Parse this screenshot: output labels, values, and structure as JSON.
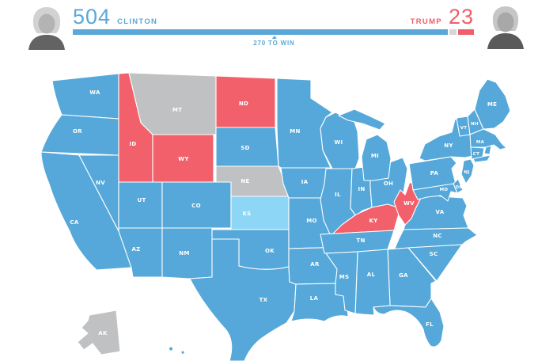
{
  "header": {
    "clinton": {
      "name": "CLINTON",
      "ev": 504
    },
    "trump": {
      "name": "TRUMP",
      "ev": 23
    },
    "tossup_ev": 11,
    "total_ev": 538,
    "threshold": 270,
    "threshold_label": "270 TO WIN"
  },
  "colors": {
    "dem": "#55a8d9",
    "rep": "#f2616b",
    "tossup": "#bfc1c3",
    "lean_dem": "#8dd6f6",
    "bar_tossup": "#d6d6d6",
    "text_blue": "#5ba8d8",
    "text_red": "#ee5f69"
  },
  "map": {
    "states": [
      {
        "abbr": "WA",
        "party": "dem"
      },
      {
        "abbr": "OR",
        "party": "dem"
      },
      {
        "abbr": "CA",
        "party": "dem"
      },
      {
        "abbr": "NV",
        "party": "dem"
      },
      {
        "abbr": "ID",
        "party": "rep"
      },
      {
        "abbr": "MT",
        "party": "tossup"
      },
      {
        "abbr": "WY",
        "party": "rep"
      },
      {
        "abbr": "UT",
        "party": "dem"
      },
      {
        "abbr": "CO",
        "party": "dem"
      },
      {
        "abbr": "AZ",
        "party": "dem"
      },
      {
        "abbr": "NM",
        "party": "dem"
      },
      {
        "abbr": "ND",
        "party": "rep"
      },
      {
        "abbr": "SD",
        "party": "dem"
      },
      {
        "abbr": "NE",
        "party": "tossup"
      },
      {
        "abbr": "KS",
        "party": "lean_dem"
      },
      {
        "abbr": "OK",
        "party": "dem"
      },
      {
        "abbr": "TX",
        "party": "dem"
      },
      {
        "abbr": "MN",
        "party": "dem"
      },
      {
        "abbr": "IA",
        "party": "dem"
      },
      {
        "abbr": "MO",
        "party": "dem"
      },
      {
        "abbr": "AR",
        "party": "dem"
      },
      {
        "abbr": "LA",
        "party": "dem"
      },
      {
        "abbr": "WI",
        "party": "dem"
      },
      {
        "abbr": "IL",
        "party": "dem"
      },
      {
        "abbr": "IN",
        "party": "dem"
      },
      {
        "abbr": "OH",
        "party": "dem"
      },
      {
        "abbr": "MI",
        "party": "dem"
      },
      {
        "abbr": "KY",
        "party": "rep"
      },
      {
        "abbr": "TN",
        "party": "dem"
      },
      {
        "abbr": "WV",
        "party": "rep"
      },
      {
        "abbr": "VA",
        "party": "dem"
      },
      {
        "abbr": "NC",
        "party": "dem"
      },
      {
        "abbr": "SC",
        "party": "dem"
      },
      {
        "abbr": "GA",
        "party": "dem"
      },
      {
        "abbr": "AL",
        "party": "dem"
      },
      {
        "abbr": "MS",
        "party": "dem"
      },
      {
        "abbr": "FL",
        "party": "dem"
      },
      {
        "abbr": "PA",
        "party": "dem"
      },
      {
        "abbr": "NY",
        "party": "dem"
      },
      {
        "abbr": "VT",
        "party": "dem"
      },
      {
        "abbr": "NH",
        "party": "dem"
      },
      {
        "abbr": "ME",
        "party": "dem"
      },
      {
        "abbr": "MA",
        "party": "dem"
      },
      {
        "abbr": "RI",
        "party": "dem",
        "label": false
      },
      {
        "abbr": "CT",
        "party": "dem"
      },
      {
        "abbr": "NJ",
        "party": "dem"
      },
      {
        "abbr": "DE",
        "party": "dem"
      },
      {
        "abbr": "MD",
        "party": "dem"
      },
      {
        "abbr": "AK",
        "party": "tossup"
      },
      {
        "abbr": "HI",
        "party": "dem",
        "label": false
      }
    ]
  }
}
